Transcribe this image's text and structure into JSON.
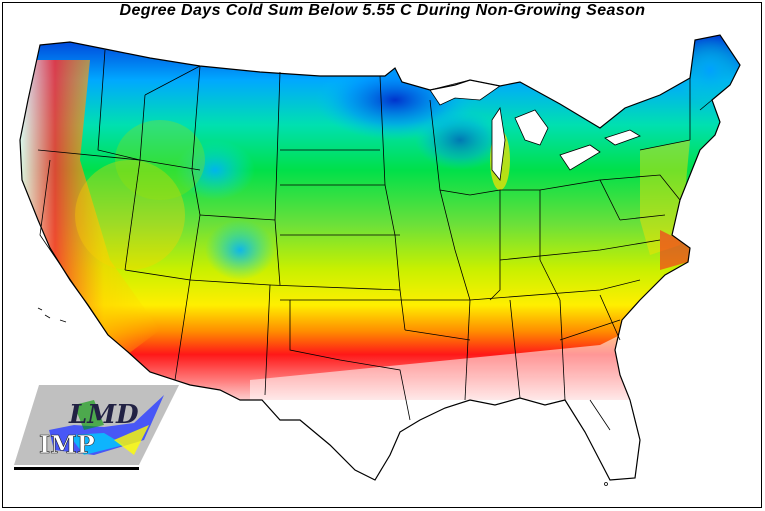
{
  "title": "Degree Days Cold Sum Below 5.55 C During Non-Growing Season",
  "map": {
    "region": "Conterminous United States",
    "color_scale": [
      "#ffffff",
      "#f7c6c6",
      "#ff1a1a",
      "#ff8c00",
      "#ffff00",
      "#9acd32",
      "#00dd44",
      "#00e0e0",
      "#00aaff",
      "#0033cc"
    ],
    "scale_meaning": "white/pink = low cold sum (warm south), red to yellow to green to blue = increasing cold sum (north)"
  },
  "logo": {
    "upper_text": "LMD",
    "lower_text": "IMP"
  }
}
